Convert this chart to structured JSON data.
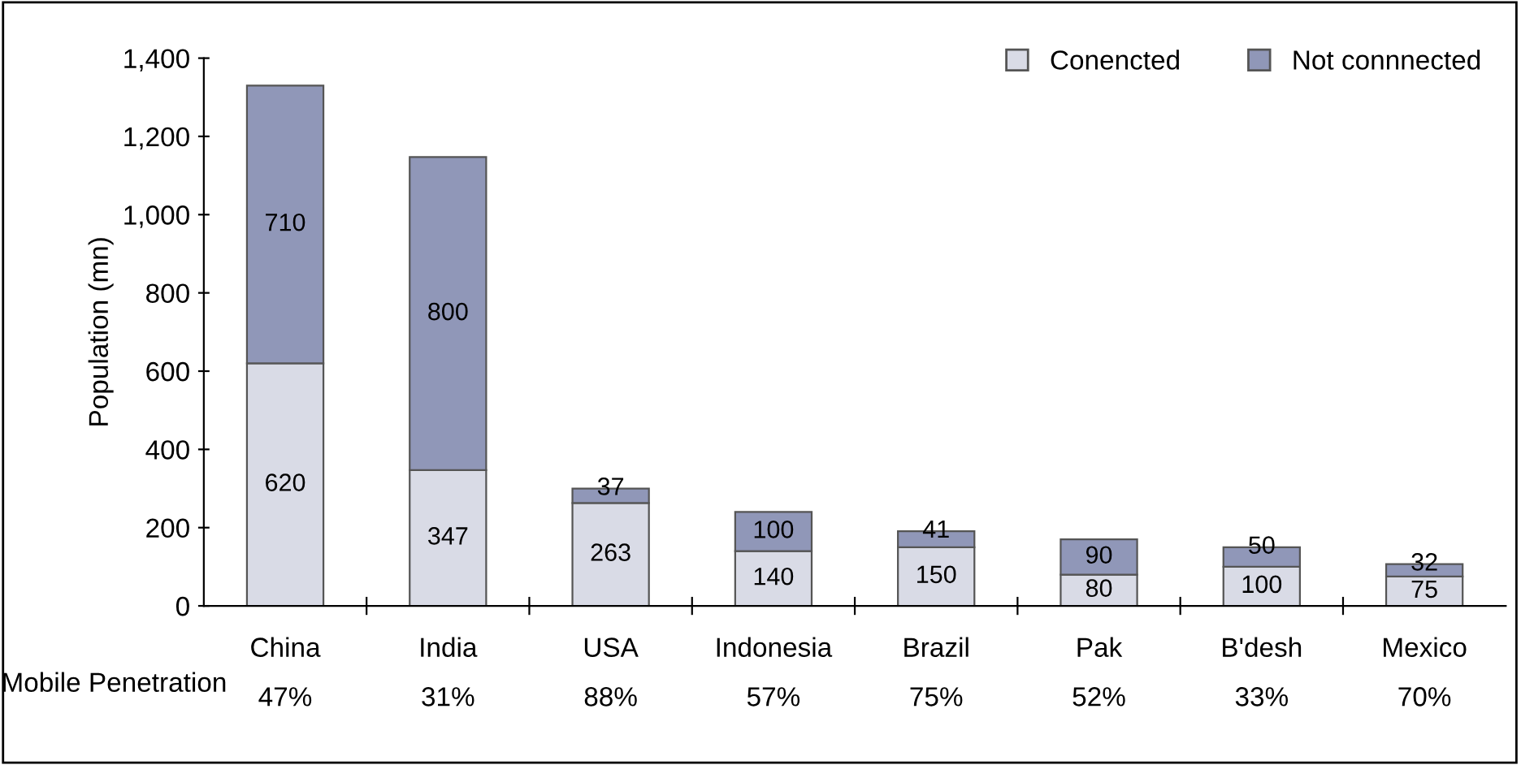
{
  "chart_data": {
    "type": "bar",
    "stacked": true,
    "ylabel": "Population (mn)",
    "categories": [
      "China",
      "India",
      "USA",
      "Indonesia",
      "Brazil",
      "Pak",
      "B'desh",
      "Mexico"
    ],
    "series": [
      {
        "name": "Conencted",
        "color": "#d9dbe6",
        "values": [
          620,
          347,
          263,
          140,
          150,
          80,
          100,
          75
        ]
      },
      {
        "name": "Not connnected",
        "color": "#9097b8",
        "values": [
          710,
          800,
          37,
          100,
          41,
          90,
          50,
          32
        ]
      }
    ],
    "ylim": [
      0,
      1400
    ],
    "yticks": [
      0,
      200,
      400,
      600,
      800,
      {
        "value": 1000,
        "label": "1,000"
      },
      {
        "value": 1200,
        "label": "1,200"
      },
      {
        "value": 1400,
        "label": "1,400"
      }
    ],
    "data_labels": true,
    "legend": "top right",
    "grid": false,
    "annotations": [
      "Mobile Penetration",
      "47%",
      "31%",
      "88%",
      "57%",
      "75%",
      "52%",
      "33%",
      "70%"
    ]
  }
}
